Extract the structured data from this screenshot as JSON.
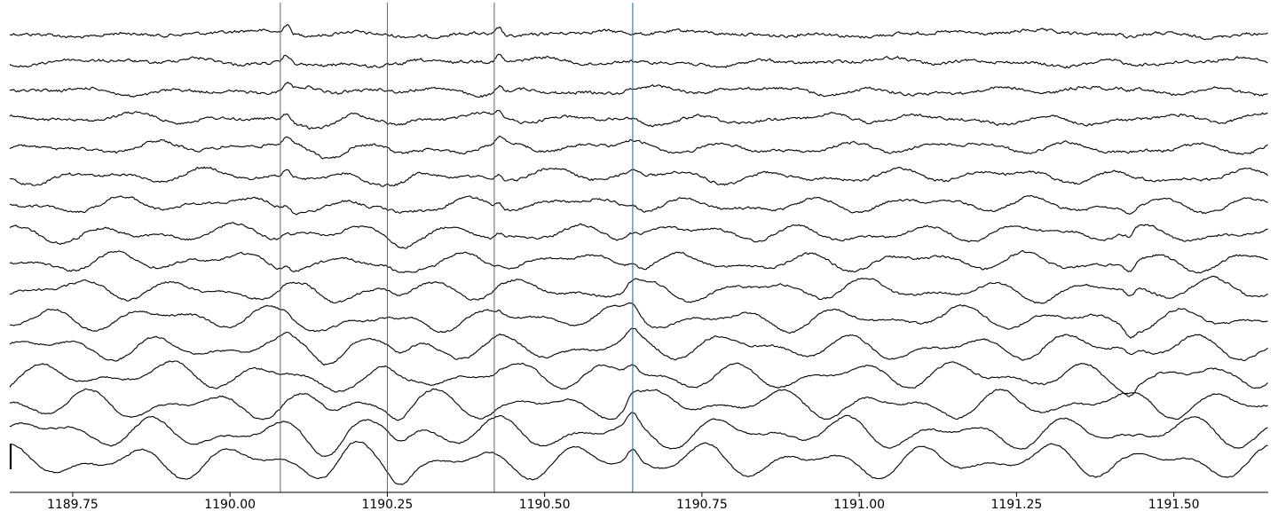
{
  "chart_data": {
    "type": "line",
    "title": "",
    "xlabel": "",
    "ylabel": "",
    "xlim": [
      1189.65,
      1191.65
    ],
    "x_ticks": [
      1189.75,
      1190.0,
      1190.25,
      1190.5,
      1190.75,
      1191.0,
      1191.25,
      1191.5
    ],
    "x_tick_labels": [
      "1189.75",
      "1190.00",
      "1190.25",
      "1190.50",
      "1190.75",
      "1191.00",
      "1191.25",
      "1191.50"
    ],
    "grid": false,
    "legend": "none",
    "trace_color": "#000000",
    "event_marker_color": "#555555",
    "cursor_color": "#1f77b4",
    "n_channels": 16,
    "event_markers_x": [
      1190.08,
      1190.25,
      1190.42
    ],
    "cursor_x": 1190.64,
    "scale_bar": true,
    "series_description": "16 stacked EEG-like channel traces; upper channels show sharp transients after 1190.08 and 1190.42, lower channels show larger slow oscillations"
  }
}
